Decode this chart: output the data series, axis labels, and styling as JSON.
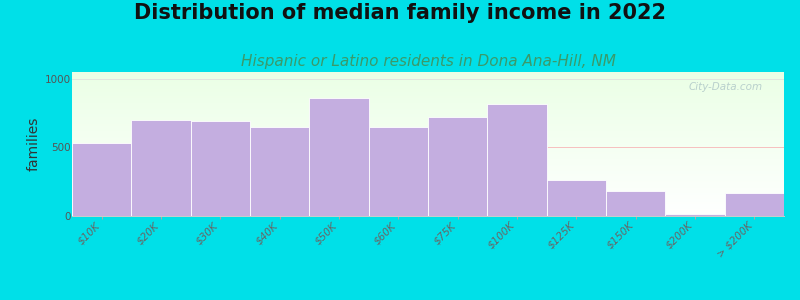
{
  "title": "Distribution of median family income in 2022",
  "subtitle": "Hispanic or Latino residents in Dona Ana-Hill, NM",
  "ylabel": "families",
  "categories": [
    "$10K",
    "$20K",
    "$30K",
    "$40K",
    "$50K",
    "$60K",
    "$75K",
    "$100K",
    "$125K",
    "$150K",
    "$200K",
    "> $200K"
  ],
  "values": [
    530,
    700,
    695,
    650,
    860,
    650,
    720,
    820,
    265,
    185,
    15,
    170
  ],
  "bar_color": "#c4aee0",
  "bar_edge_color": "#ffffff",
  "ylim": [
    0,
    1050
  ],
  "yticks": [
    0,
    500,
    1000
  ],
  "background_outer": "#00e0e8",
  "title_fontsize": 15,
  "subtitle_fontsize": 11,
  "subtitle_color": "#3a9a6a",
  "ylabel_fontsize": 10,
  "tick_fontsize": 7.5,
  "watermark_text": "City-Data.com",
  "watermark_color": "#b0c8c8",
  "hline_color": "#ffb0b0",
  "hline_y": 500
}
